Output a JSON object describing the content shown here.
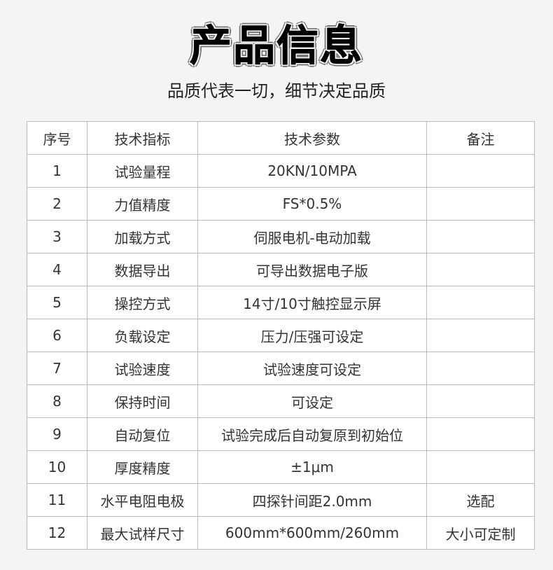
{
  "title": "产品信息",
  "subtitle": "品质代表一切，细节决定品质",
  "table": {
    "headers": [
      "序号",
      "技术指标",
      "技术参数",
      "备注"
    ],
    "rows": [
      [
        "1",
        "试验量程",
        "20KN/10MPA",
        ""
      ],
      [
        "2",
        "力值精度",
        "FS*0.5%",
        ""
      ],
      [
        "3",
        "加载方式",
        "伺服电机-电动加载",
        ""
      ],
      [
        "4",
        "数据导出",
        "可导出数据电子版",
        ""
      ],
      [
        "5",
        "操控方式",
        "14寸/10寸触控显示屏",
        ""
      ],
      [
        "6",
        "负载设定",
        "压力/压强可设定",
        ""
      ],
      [
        "7",
        "试验速度",
        "试验速度可设定",
        ""
      ],
      [
        "8",
        "保持时间",
        "可设定",
        ""
      ],
      [
        "9",
        "自动复位",
        "试验完成后自动复原到初始位",
        ""
      ],
      [
        "10",
        "厚度精度",
        "±1μm",
        ""
      ],
      [
        "11",
        "水平电阻电极",
        "四探针间距2.0mm",
        "选配"
      ],
      [
        "12",
        "最大试样尺寸",
        "600mm*600mm/260mm",
        "大小可定制"
      ]
    ]
  }
}
